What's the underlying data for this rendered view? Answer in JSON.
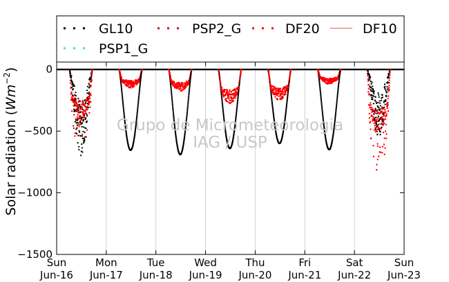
{
  "chart_data": {
    "type": "scatter",
    "title": "",
    "ylabel_prefix": "Solar radiation (",
    "ylabel_unit": "Wm",
    "ylabel_exp": "−2",
    "ylabel_suffix": ")",
    "xlabel": "",
    "ylim": [
      -1500,
      60
    ],
    "yticks": [
      0,
      -500,
      -1000,
      -1500
    ],
    "ytick_labels": [
      "0",
      "−500",
      "−1000",
      "−1500"
    ],
    "xlim": [
      0,
      7
    ],
    "x_ticks": [
      {
        "day": "Sun",
        "date": "Jun-16"
      },
      {
        "day": "Mon",
        "date": "Jun-17"
      },
      {
        "day": "Tue",
        "date": "Jun-18"
      },
      {
        "day": "Wed",
        "date": "Jun-19"
      },
      {
        "day": "Thu",
        "date": "Jun-20"
      },
      {
        "day": "Fri",
        "date": "Jun-21"
      },
      {
        "day": "Sat",
        "date": "Jun-22"
      },
      {
        "day": "Sun",
        "date": "Jun-23"
      }
    ],
    "grid": "vertical",
    "legend_placement": "top",
    "watermark": [
      "Grupo de Micrometeorologia",
      "IAG / USP"
    ],
    "series": [
      {
        "name": "GL10",
        "color": "#000000",
        "style": "dots",
        "daily_min": [
          -700,
          -655,
          -690,
          -640,
          -600,
          -650,
          -550
        ]
      },
      {
        "name": "PSP2_G",
        "color": "#dd0000",
        "style": "dots",
        "daily_min": []
      },
      {
        "name": "DF20",
        "color": "#ff0000",
        "style": "dots",
        "daily_min": [
          -330,
          -120,
          -140,
          -220,
          -200,
          -95,
          -420
        ]
      },
      {
        "name": "DF10",
        "color": "#f07070",
        "style": "line",
        "daily_min": []
      },
      {
        "name": "PSP1_G",
        "color": "#40e0d0",
        "style": "dots",
        "daily_min": []
      }
    ]
  }
}
